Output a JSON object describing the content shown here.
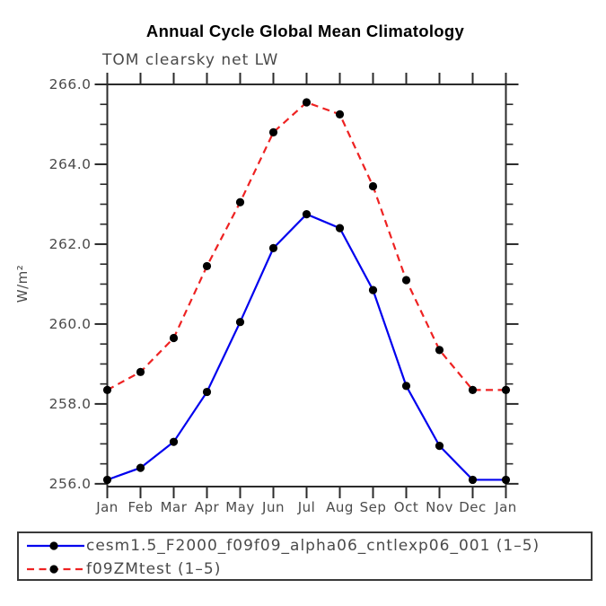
{
  "chart_data": {
    "type": "line",
    "title": "Annual Cycle Global Mean Climatology",
    "subtitle": "TOM clearsky net LW",
    "ylabel": "W/m²",
    "x": [
      "Jan",
      "Feb",
      "Mar",
      "Apr",
      "May",
      "Jun",
      "Jul",
      "Aug",
      "Sep",
      "Oct",
      "Nov",
      "Dec",
      "Jan"
    ],
    "series": [
      {
        "name": "cesm1.5_F2000_f09f09_alpha06_cntlexp06_001 (1–5)",
        "color": "#0000ee",
        "style": "solid",
        "values": [
          256.1,
          256.4,
          257.05,
          258.3,
          260.05,
          261.9,
          262.75,
          262.4,
          260.85,
          258.45,
          256.95,
          256.1,
          256.1
        ]
      },
      {
        "name": "f09ZMtest (1–5)",
        "color": "#ee2222",
        "style": "dashed",
        "values": [
          258.35,
          258.8,
          259.65,
          261.45,
          263.05,
          264.8,
          265.55,
          265.25,
          263.45,
          261.1,
          259.35,
          258.35,
          258.35
        ]
      }
    ],
    "marker": "filled-circle",
    "marker_color": "#000000",
    "ylim": [
      255.93,
      266.0
    ],
    "yticks_major": [
      256.0,
      258.0,
      260.0,
      262.0,
      264.0,
      266.0
    ],
    "ytick_major_labels": [
      "256.0",
      "258.0",
      "260.0",
      "262.0",
      "264.0",
      "266.0"
    ],
    "ytick_minor_interval": 0.5,
    "grid": "off",
    "legend_position": "bottom-left",
    "axis_color": "#2b2b2b",
    "tick_label_color": "#4a4a4a"
  }
}
